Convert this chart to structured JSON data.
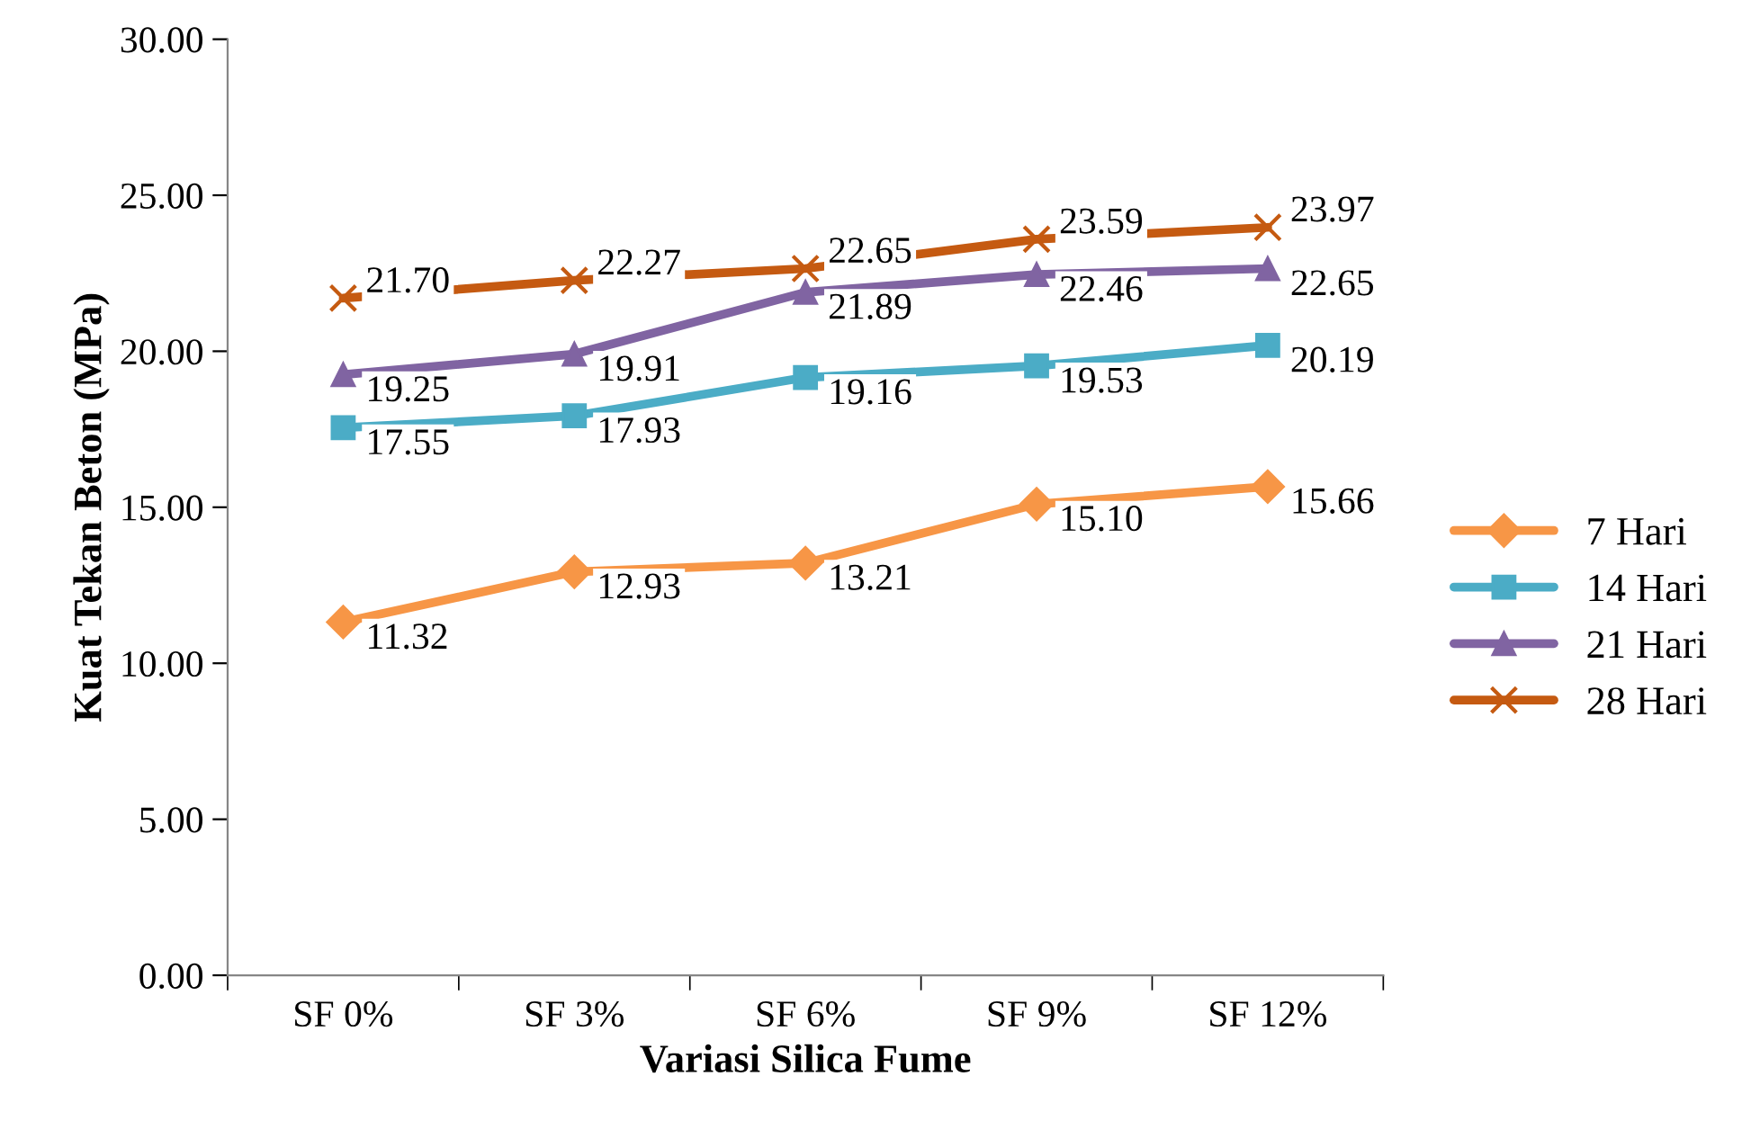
{
  "chart_data": {
    "type": "line",
    "xlabel": "Variasi Silica Fume",
    "ylabel": "Kuat Tekan Beton (MPa)",
    "categories": [
      "SF 0%",
      "SF 3%",
      "SF 6%",
      "SF 9%",
      "SF 12%"
    ],
    "series": [
      {
        "name": "7 Hari",
        "color": "#f79646",
        "marker": "diamond",
        "values": [
          11.32,
          12.93,
          13.21,
          15.1,
          15.66
        ],
        "value_labels": [
          "11.32",
          "12.93",
          "13.21",
          "15.10",
          "15.66"
        ]
      },
      {
        "name": "14 Hari",
        "color": "#4bacc6",
        "marker": "square",
        "values": [
          17.55,
          17.93,
          19.16,
          19.53,
          20.19
        ],
        "value_labels": [
          "17.55",
          "17.93",
          "19.16",
          "19.53",
          "20.19"
        ]
      },
      {
        "name": "21 Hari",
        "color": "#8064a2",
        "marker": "triangle",
        "values": [
          19.25,
          19.91,
          21.89,
          22.46,
          22.65
        ],
        "value_labels": [
          "19.25",
          "19.91",
          "21.89",
          "22.46",
          "22.65"
        ]
      },
      {
        "name": "28 Hari",
        "color": "#c55a11",
        "marker": "cross",
        "values": [
          21.7,
          22.27,
          22.65,
          23.59,
          23.97
        ],
        "value_labels": [
          "21.70",
          "22.27",
          "22.65",
          "23.59",
          "23.97"
        ]
      }
    ],
    "ylim": [
      0,
      30
    ],
    "yticks": [
      {
        "value": 0,
        "label": "0.00"
      },
      {
        "value": 5,
        "label": "5.00"
      },
      {
        "value": 10,
        "label": "10.00"
      },
      {
        "value": 15,
        "label": "15.00"
      },
      {
        "value": 20,
        "label": "20.00"
      },
      {
        "value": 25,
        "label": "25.00"
      },
      {
        "value": 30,
        "label": "30.00"
      }
    ],
    "grid": false,
    "legend": "right",
    "line_style": "solid"
  }
}
